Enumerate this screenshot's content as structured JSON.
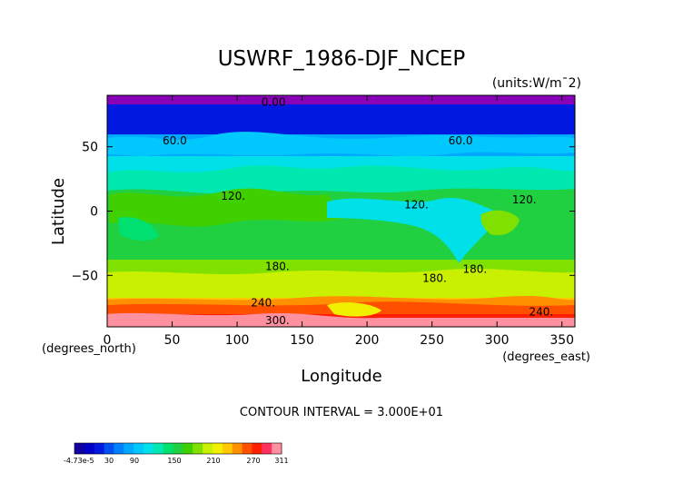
{
  "chart_data": {
    "type": "heatmap",
    "title": "USWRF_1986-DJF_NCEP",
    "units": "(units:W/m^2)",
    "units_display": "(units:W/m¯2)",
    "xlabel": "Longitude",
    "xlabel_unit": "(degrees_east)",
    "ylabel": "Latitude",
    "ylabel_unit": "(degrees_north)",
    "xlim": [
      0,
      360
    ],
    "ylim": [
      -90,
      90
    ],
    "x_ticks": [
      0,
      50,
      100,
      150,
      200,
      250,
      300,
      350
    ],
    "y_ticks": [
      -50,
      0,
      50
    ],
    "contour_interval": "CONTOUR INTERVAL = 3.000E+01",
    "contour_labels": [
      {
        "text": "0.00",
        "lon": 128,
        "lat": 82
      },
      {
        "text": "60.0",
        "lon": 52,
        "lat": 52
      },
      {
        "text": "60.0",
        "lon": 272,
        "lat": 52
      },
      {
        "text": "120.",
        "lon": 97,
        "lat": 9
      },
      {
        "text": "120.",
        "lon": 238,
        "lat": 2
      },
      {
        "text": "120.",
        "lon": 321,
        "lat": 6
      },
      {
        "text": "180.",
        "lon": 131,
        "lat": -46
      },
      {
        "text": "180.",
        "lon": 283,
        "lat": -48
      },
      {
        "text": "180.",
        "lon": 252,
        "lat": -55
      },
      {
        "text": "240.",
        "lon": 120,
        "lat": -74
      },
      {
        "text": "240.",
        "lon": 334,
        "lat": -81
      },
      {
        "text": "300.",
        "lon": 131,
        "lat": -88
      }
    ],
    "zonal_mean_profile": [
      {
        "lat": 90,
        "value": 0
      },
      {
        "lat": 80,
        "value": 15
      },
      {
        "lat": 60,
        "value": 45
      },
      {
        "lat": 50,
        "value": 75
      },
      {
        "lat": 40,
        "value": 95
      },
      {
        "lat": 30,
        "value": 115
      },
      {
        "lat": 20,
        "value": 135
      },
      {
        "lat": 10,
        "value": 140
      },
      {
        "lat": 0,
        "value": 145
      },
      {
        "lat": -10,
        "value": 148
      },
      {
        "lat": -20,
        "value": 155
      },
      {
        "lat": -30,
        "value": 165
      },
      {
        "lat": -40,
        "value": 185
      },
      {
        "lat": -50,
        "value": 200
      },
      {
        "lat": -60,
        "value": 230
      },
      {
        "lat": -70,
        "value": 270
      },
      {
        "lat": -80,
        "value": 300
      },
      {
        "lat": -90,
        "value": 311
      }
    ],
    "colorbar": {
      "min_label": "-4.73e-5",
      "labels": [
        "30",
        "90",
        "150",
        "210",
        "270"
      ],
      "max_label": "311",
      "colors": [
        "#1200a0",
        "#0000c8",
        "#0018e0",
        "#0050f0",
        "#0080ff",
        "#00a8ff",
        "#00c8ff",
        "#00e0e8",
        "#00e8b0",
        "#00e070",
        "#20d040",
        "#40d000",
        "#80e000",
        "#c8f000",
        "#f0f000",
        "#ffc800",
        "#ff9000",
        "#ff5000",
        "#ff2000",
        "#ff3060",
        "#ff90a0"
      ]
    }
  }
}
